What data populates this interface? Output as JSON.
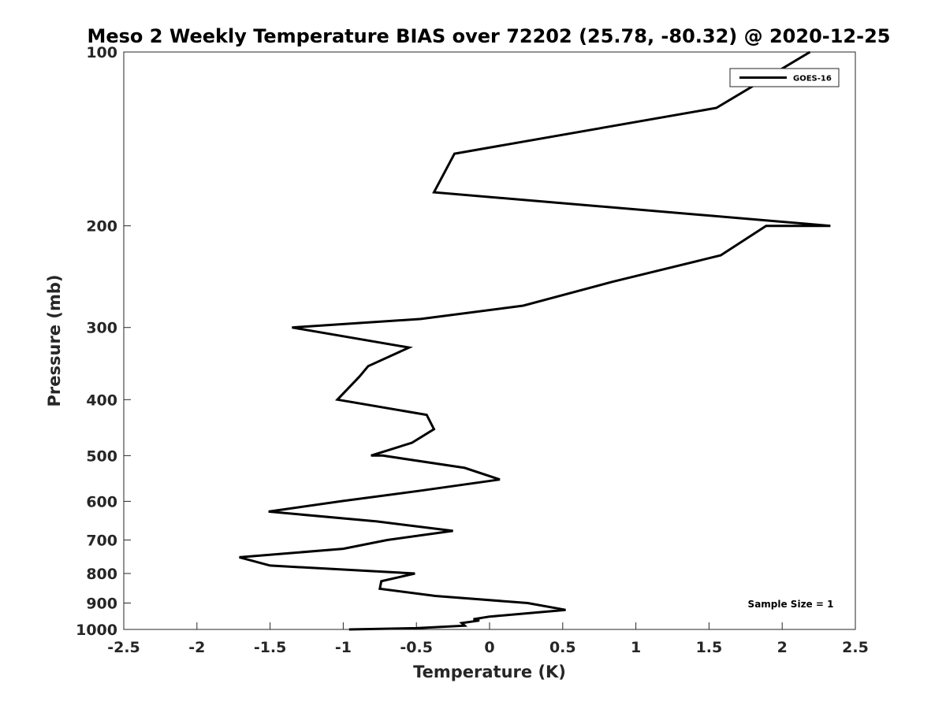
{
  "chart_data": {
    "type": "line",
    "title": "Meso 2 Weekly Temperature BIAS over 72202 (25.78, -80.32) @ 2020-12-25",
    "xlabel": "Temperature (K)",
    "ylabel": "Pressure (mb)",
    "xlim": [
      -2.5,
      2.5
    ],
    "ylim": [
      1000,
      100
    ],
    "yscale": "log",
    "y_reversed": true,
    "xticks": [
      -2.5,
      -2,
      -1.5,
      -1,
      -0.5,
      0,
      0.5,
      1,
      1.5,
      2,
      2.5
    ],
    "xtick_labels": [
      "-2.5",
      "-2",
      "-1.5",
      "-1",
      "-0.5",
      "0",
      "0.5",
      "1",
      "1.5",
      "2",
      "2.5"
    ],
    "yticks": [
      100,
      200,
      300,
      400,
      500,
      600,
      700,
      800,
      900,
      1000
    ],
    "ytick_labels": [
      "100",
      "200",
      "300",
      "400",
      "500",
      "600",
      "700",
      "800",
      "900",
      "1000"
    ],
    "legend_position": "top-right",
    "grid": false,
    "annotation": "Sample Size = 1",
    "series": [
      {
        "name": "GOES-16",
        "color": "#000000",
        "points": [
          {
            "x": 2.19,
            "p": 100
          },
          {
            "x": 1.55,
            "p": 125
          },
          {
            "x": -0.24,
            "p": 150
          },
          {
            "x": -0.38,
            "p": 175
          },
          {
            "x": 2.33,
            "p": 200
          },
          {
            "x": 1.89,
            "p": 200
          },
          {
            "x": 1.58,
            "p": 225
          },
          {
            "x": 0.84,
            "p": 250
          },
          {
            "x": 0.23,
            "p": 275
          },
          {
            "x": -0.47,
            "p": 290
          },
          {
            "x": -1.35,
            "p": 300
          },
          {
            "x": -0.55,
            "p": 325
          },
          {
            "x": -0.83,
            "p": 350
          },
          {
            "x": -0.89,
            "p": 365
          },
          {
            "x": -1.04,
            "p": 400
          },
          {
            "x": -0.43,
            "p": 425
          },
          {
            "x": -0.38,
            "p": 450
          },
          {
            "x": -0.53,
            "p": 475
          },
          {
            "x": -0.81,
            "p": 500
          },
          {
            "x": -0.73,
            "p": 500
          },
          {
            "x": -0.17,
            "p": 525
          },
          {
            "x": 0.07,
            "p": 550
          },
          {
            "x": -0.47,
            "p": 575
          },
          {
            "x": -1.02,
            "p": 600
          },
          {
            "x": -1.51,
            "p": 625
          },
          {
            "x": -0.77,
            "p": 650
          },
          {
            "x": -0.25,
            "p": 675
          },
          {
            "x": -0.7,
            "p": 700
          },
          {
            "x": -1.0,
            "p": 725
          },
          {
            "x": -1.71,
            "p": 750
          },
          {
            "x": -1.5,
            "p": 775
          },
          {
            "x": -0.51,
            "p": 800
          },
          {
            "x": -0.74,
            "p": 825
          },
          {
            "x": -0.75,
            "p": 850
          },
          {
            "x": -0.37,
            "p": 875
          },
          {
            "x": 0.26,
            "p": 900
          },
          {
            "x": 0.52,
            "p": 925
          },
          {
            "x": 0.0,
            "p": 950
          },
          {
            "x": -0.11,
            "p": 960
          },
          {
            "x": -0.07,
            "p": 965
          },
          {
            "x": -0.19,
            "p": 975
          },
          {
            "x": -0.17,
            "p": 985
          },
          {
            "x": -0.5,
            "p": 995
          },
          {
            "x": -0.96,
            "p": 1000
          }
        ]
      }
    ]
  }
}
